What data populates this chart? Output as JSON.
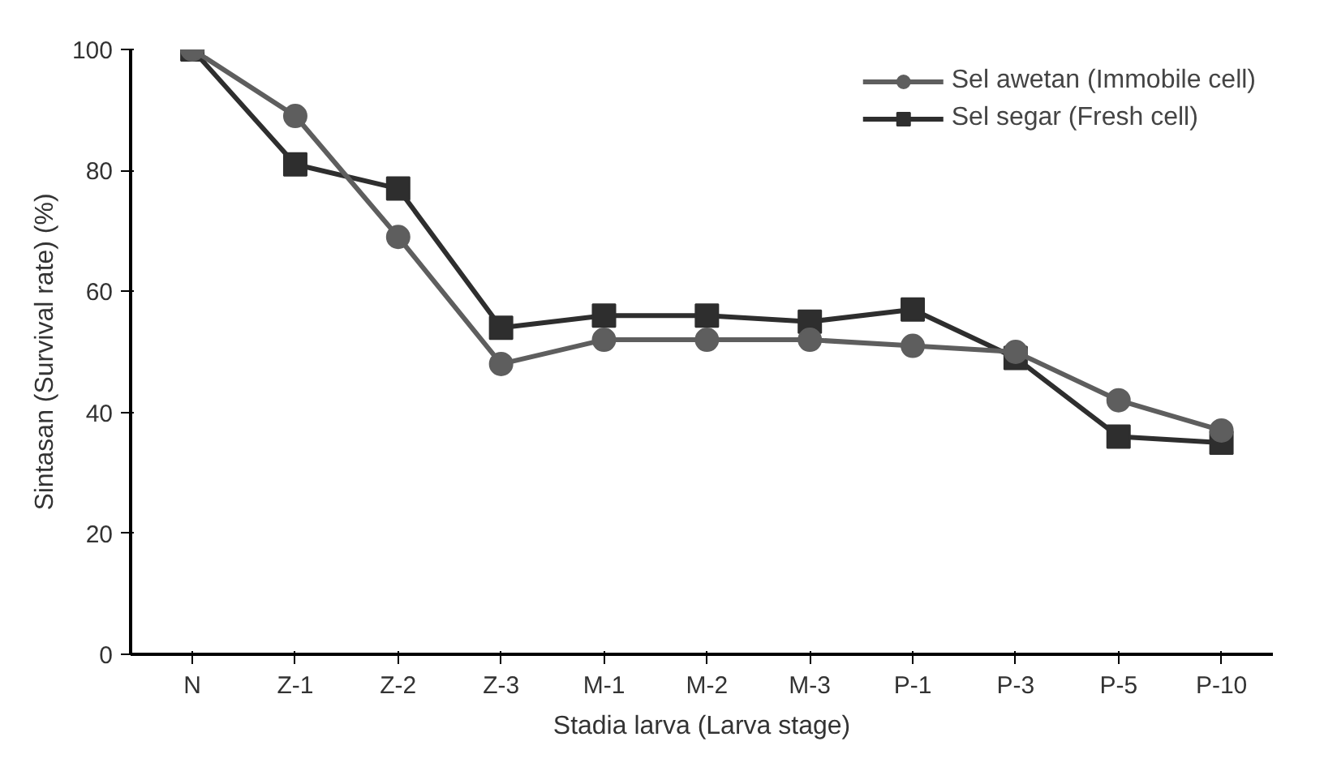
{
  "chart_data": {
    "type": "line",
    "xlabel": "Stadia larva (Larva stage)",
    "ylabel": "Sintasan (Survival rate) (%)",
    "categories": [
      "N",
      "Z-1",
      "Z-2",
      "Z-3",
      "M-1",
      "M-2",
      "M-3",
      "P-1",
      "P-3",
      "P-5",
      "P-10"
    ],
    "series": [
      {
        "name": "Sel awetan (Immobile cell)",
        "color": "#5e5e5e",
        "marker": "circle",
        "values": [
          100,
          89,
          69,
          48,
          52,
          52,
          52,
          51,
          50,
          42,
          37
        ]
      },
      {
        "name": "Sel segar (Fresh cell)",
        "color": "#2e2e2e",
        "marker": "square",
        "values": [
          100,
          81,
          77,
          54,
          56,
          56,
          55,
          57,
          49,
          36,
          35
        ]
      }
    ],
    "ylim": [
      0,
      100
    ],
    "yticks": [
      0,
      20,
      40,
      60,
      80,
      100
    ],
    "grid": false,
    "legend": "top right",
    "line_style": "solid"
  }
}
